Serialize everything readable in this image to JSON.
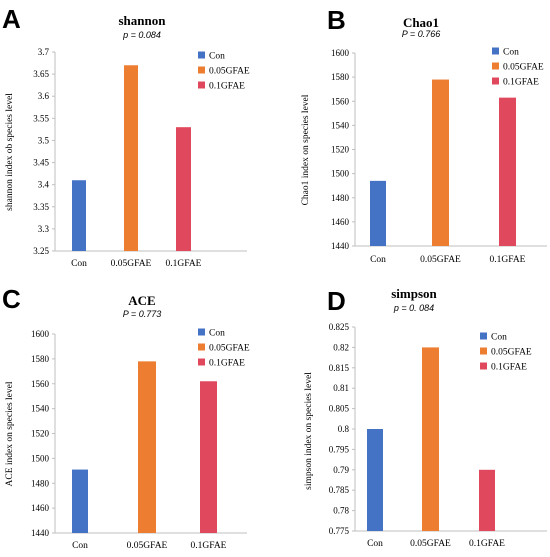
{
  "colors": {
    "Con": "#4472c4",
    "0.05GFAE": "#ed7d31",
    "0.1GFAE": "#e0495d",
    "axis": "#bfbfbf"
  },
  "chart_data": [
    {
      "letter": "A",
      "type": "bar",
      "title": "shannon",
      "pvalue": "p = 0.084",
      "ylabel": "shannon index ob species level",
      "categories": [
        "Con",
        "0.05GFAE",
        "0.1GFAE"
      ],
      "values": [
        3.41,
        3.67,
        3.53
      ],
      "ylim": [
        3.25,
        3.7
      ],
      "yticks": [
        "3.25",
        "3.3",
        "3.35",
        "3.4",
        "3.45",
        "3.5",
        "3.55",
        "3.6",
        "3.65",
        "3.7"
      ],
      "legend": [
        "Con",
        "0.05GFAE",
        "0.1GFAE"
      ],
      "legend_position": "top-right",
      "grid": false
    },
    {
      "letter": "B",
      "type": "bar",
      "title": "Chao1",
      "pvalue": "P = 0.766",
      "ylabel": "Chao1 index on species level",
      "categories": [
        "Con",
        "0.05GFAE",
        "0.1GFAE"
      ],
      "values": [
        1494,
        1578,
        1563
      ],
      "ylim": [
        1440,
        1600
      ],
      "yticks": [
        "1440",
        "1460",
        "1480",
        "1500",
        "1520",
        "1540",
        "1560",
        "1580",
        "1600"
      ],
      "legend": [
        "Con",
        "0.05GFAE",
        "0.1GFAE"
      ],
      "legend_position": "top-right",
      "grid": false
    },
    {
      "letter": "C",
      "type": "bar",
      "title": "ACE",
      "pvalue": "P = 0.773",
      "ylabel": "ACE index on species level",
      "categories": [
        "Con",
        "0.05GFAE",
        "0.1GFAE"
      ],
      "values": [
        1491,
        1578,
        1562
      ],
      "ylim": [
        1440,
        1600
      ],
      "yticks": [
        "1440",
        "1460",
        "1480",
        "1500",
        "1520",
        "1540",
        "1560",
        "1580",
        "1600"
      ],
      "legend": [
        "Con",
        "0.05GFAE",
        "0.1GFAE"
      ],
      "legend_position": "top-right",
      "grid": false
    },
    {
      "letter": "D",
      "type": "bar",
      "title": "simpson",
      "pvalue": "p = 0. 084",
      "ylabel": "simpson index on species level",
      "categories": [
        "Con",
        "0.05GFAE",
        "0.1GFAE"
      ],
      "values": [
        0.8,
        0.82,
        0.79
      ],
      "ylim": [
        0.775,
        0.825
      ],
      "yticks": [
        "0.775",
        "0.78",
        "0.785",
        "0.79",
        "0.795",
        "0.8",
        "0.805",
        "0.81",
        "0.815",
        "0.82",
        "0.825"
      ],
      "legend": [
        "Con",
        "0.05GFAE",
        "0.1GFAE"
      ],
      "legend_position": "top-right",
      "grid": false
    }
  ]
}
